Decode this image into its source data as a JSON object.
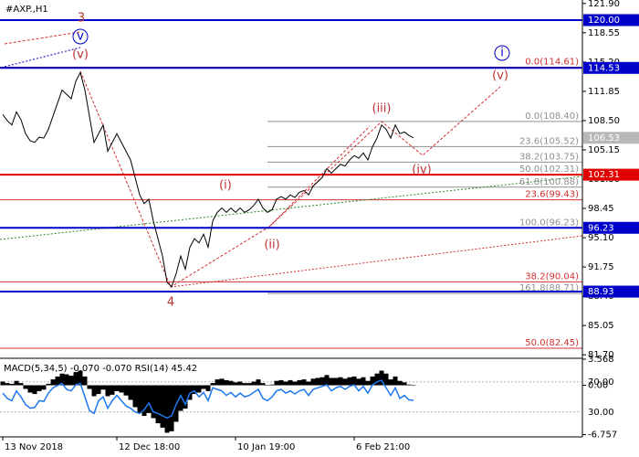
{
  "chart_data": [
    {
      "type": "line",
      "title": "#AXP.,H1",
      "color": "#000000",
      "values": [
        109.2,
        108.5,
        108.0,
        109.5,
        108.6,
        107.0,
        106.2,
        106.0,
        106.6,
        106.5,
        107.5,
        109.0,
        110.5,
        112.0,
        111.5,
        111.0,
        113.0,
        114.0,
        112.0,
        109.0,
        106.0,
        107.0,
        108.0,
        105.0,
        106.0,
        107.0,
        106.0,
        105.0,
        104.0,
        102.0,
        100.0,
        99.0,
        99.5,
        97.0,
        95.0,
        93.0,
        90.0,
        89.5,
        91.0,
        93.0,
        91.5,
        94.0,
        95.0,
        94.5,
        95.5,
        94.0,
        97.0,
        98.0,
        98.5,
        98.0,
        98.5,
        98.0,
        98.5,
        98.0,
        98.3,
        98.8,
        99.5,
        98.5,
        98.0,
        98.3,
        99.5,
        99.8,
        99.5,
        100.0,
        99.7,
        100.3,
        100.5,
        100.0,
        101.0,
        101.5,
        102.0,
        103.0,
        102.5,
        103.0,
        103.5,
        103.3,
        104.0,
        104.5,
        104.2,
        104.8,
        104.0,
        105.5,
        106.5,
        108.0,
        107.5,
        106.5,
        108.0,
        107.0,
        107.2,
        106.8,
        106.53
      ],
      "xticks": [
        {
          "value": 0,
          "label": "13 Nov 2018"
        },
        {
          "value": 25,
          "label": "12 Dec 18:00"
        },
        {
          "value": 51,
          "label": "10 Jan 19:00"
        },
        {
          "value": 77,
          "label": "6 Feb 21:00"
        }
      ],
      "ylim": [
        81.3,
        122.3
      ],
      "yticks": [
        {
          "value": 121.9,
          "label": "121.90"
        },
        {
          "value": 118.55,
          "label": "118.55"
        },
        {
          "value": 115.2,
          "label": "115.20"
        },
        {
          "value": 111.85,
          "label": "111.85"
        },
        {
          "value": 108.5,
          "label": "108.50"
        },
        {
          "value": 105.15,
          "label": "105.15"
        },
        {
          "value": 101.8,
          "label": "101.80"
        },
        {
          "value": 98.45,
          "label": "98.45"
        },
        {
          "value": 95.1,
          "label": "95.10"
        },
        {
          "value": 91.75,
          "label": "91.75"
        },
        {
          "value": 88.4,
          "label": "88.40"
        },
        {
          "value": 85.05,
          "label": "85.05"
        },
        {
          "value": 81.7,
          "label": "81.70"
        }
      ],
      "fib": [
        {
          "value": 114.61,
          "label": "0.0(114.61)",
          "color": "#d03030"
        },
        {
          "value": 108.4,
          "label": "0.0(108.40)",
          "color": "#909090"
        },
        {
          "value": 105.52,
          "label": "23.6(105.52)",
          "color": "#909090"
        },
        {
          "value": 103.75,
          "label": "38.2(103.75)",
          "color": "#909090"
        },
        {
          "value": 102.31,
          "label": "50.0(102.31)",
          "color": "#909090"
        },
        {
          "value": 100.88,
          "label": "61.8(100.88)",
          "color": "#909090"
        },
        {
          "value": 99.43,
          "label": "23.6(99.43)",
          "color": "#d03030"
        },
        {
          "value": 96.23,
          "label": "100.0(96.23)",
          "color": "#909090"
        },
        {
          "value": 90.04,
          "label": "38.2(90.04)",
          "color": "#d03030"
        },
        {
          "value": 88.71,
          "label": "161.8(88.71)",
          "color": "#909090"
        },
        {
          "value": 82.45,
          "label": "50.0(82.45)",
          "color": "#d03030"
        }
      ],
      "levels": [
        {
          "value": 120,
          "label": "120.00",
          "color": "#0000c8"
        },
        {
          "value": 114.53,
          "label": "114.53",
          "color": "#0000c8"
        },
        {
          "value": 102.31,
          "label": "102.31",
          "color": "#e00000"
        },
        {
          "value": 96.23,
          "label": "96.23",
          "color": "#0000c8"
        },
        {
          "value": 88.93,
          "label": "88.93",
          "color": "#0000c8"
        }
      ],
      "last": {
        "value": 106.53,
        "label": "106.53",
        "color": "#b8b8b8"
      },
      "annotations": [
        {
          "text": "3",
          "color": "#c03030"
        },
        {
          "text": "v",
          "color": "#0000c8"
        },
        {
          "text": "(v)",
          "color": "#c03030"
        },
        {
          "text": "4",
          "color": "#c03030"
        },
        {
          "text": "(i)",
          "color": "#c03030"
        },
        {
          "text": "(ii)",
          "color": "#c03030"
        },
        {
          "text": "(iii)",
          "color": "#c03030"
        },
        {
          "text": "(iv)",
          "color": "#c03030"
        },
        {
          "text": "(v)",
          "color": "#c03030"
        },
        {
          "text": "i",
          "color": "#0000c8"
        }
      ]
    },
    {
      "type": "indicator",
      "title": "MACD(5,34,5) -0.070 -0.070 RSI(14) 45.42",
      "histogram": {
        "color": "#000000",
        "ylim": [
          -6.757,
          3.568
        ],
        "yticks": [
          3.568,
          {
            "value": 0,
            "label": "0.00"
          },
          -6.757
        ],
        "values": [
          0.5,
          0.3,
          0.2,
          0.6,
          0.3,
          -0.5,
          -1.0,
          -1.2,
          -0.8,
          -0.6,
          0.2,
          0.8,
          1.2,
          1.6,
          1.5,
          1.3,
          1.8,
          2.0,
          1.2,
          -0.5,
          -1.5,
          -1.2,
          -0.6,
          -1.5,
          -1.3,
          -0.8,
          -1.0,
          -1.4,
          -2.0,
          -3.0,
          -3.8,
          -4.2,
          -3.8,
          -4.5,
          -5.2,
          -5.8,
          -6.5,
          -6.3,
          -5.0,
          -3.5,
          -3.2,
          -2.0,
          -1.2,
          -1.0,
          -0.5,
          -0.8,
          0.3,
          0.8,
          0.9,
          0.7,
          0.6,
          0.4,
          0.5,
          0.3,
          0.3,
          0.5,
          0.8,
          0.3,
          0.0,
          0.1,
          0.6,
          0.7,
          0.5,
          0.7,
          0.5,
          0.7,
          0.8,
          0.5,
          0.9,
          1.0,
          1.1,
          1.4,
          1.0,
          1.0,
          1.1,
          0.9,
          1.1,
          1.2,
          0.9,
          1.1,
          0.6,
          1.2,
          1.6,
          2.0,
          1.6,
          0.8,
          1.2,
          0.6,
          0.4,
          0.1,
          -0.07
        ]
      },
      "line": {
        "color": "#1e78f0",
        "ylim": [
          0,
          100
        ],
        "yticks": [
          {
            "value": 70,
            "label": "70.00"
          },
          {
            "value": 30,
            "label": "30.00"
          }
        ],
        "values": [
          55,
          48,
          45,
          58,
          50,
          40,
          35,
          36,
          45,
          44,
          55,
          62,
          65,
          68,
          60,
          58,
          66,
          68,
          50,
          32,
          28,
          45,
          50,
          35,
          45,
          52,
          45,
          38,
          35,
          30,
          28,
          33,
          42,
          30,
          28,
          25,
          22,
          25,
          40,
          52,
          40,
          55,
          58,
          50,
          56,
          45,
          62,
          60,
          58,
          52,
          56,
          50,
          55,
          50,
          52,
          56,
          60,
          48,
          45,
          50,
          58,
          60,
          55,
          58,
          54,
          58,
          60,
          52,
          60,
          62,
          64,
          66,
          58,
          62,
          64,
          60,
          64,
          66,
          58,
          64,
          55,
          66,
          70,
          72,
          62,
          52,
          62,
          48,
          52,
          46,
          45.42
        ]
      }
    }
  ]
}
